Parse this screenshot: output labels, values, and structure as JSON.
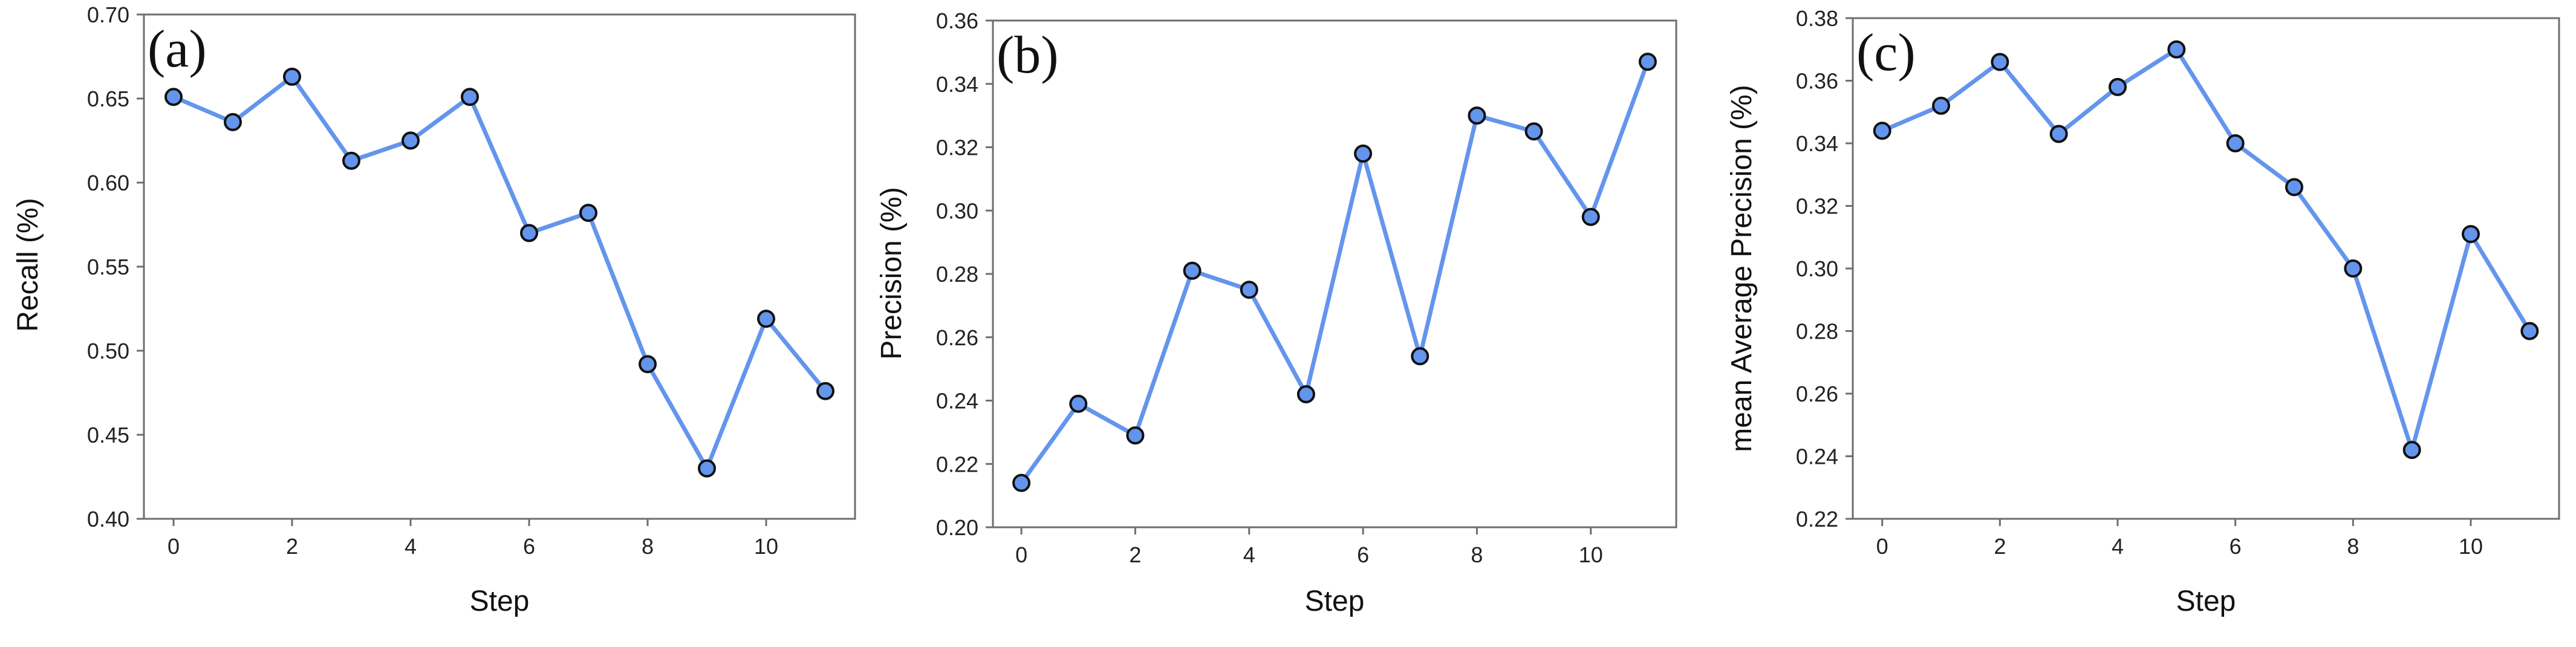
{
  "style": {
    "line_color": "#6495ED",
    "marker_fill": "#6495ED",
    "marker_edge": "#111111"
  },
  "chart_data": [
    {
      "type": "line",
      "panel_label": "(a)",
      "xlabel": "Step",
      "ylabel": "Recall (%)",
      "x": [
        0,
        1,
        2,
        3,
        4,
        5,
        6,
        7,
        8,
        9,
        10,
        11
      ],
      "values": [
        0.651,
        0.636,
        0.663,
        0.613,
        0.625,
        0.651,
        0.57,
        0.582,
        0.492,
        0.43,
        0.519,
        0.476
      ],
      "xlim": [
        -0.5,
        11.5
      ],
      "ylim": [
        0.4,
        0.7
      ],
      "xticks": [
        0,
        2,
        4,
        6,
        8,
        10
      ],
      "xtick_labels": [
        "0",
        "2",
        "4",
        "6",
        "8",
        "10"
      ],
      "yticks": [
        0.4,
        0.45,
        0.5,
        0.55,
        0.6,
        0.65,
        0.7
      ],
      "ytick_labels": [
        "0.40",
        "0.45",
        "0.50",
        "0.55",
        "0.60",
        "0.65",
        "0.70"
      ],
      "grid": false,
      "legend": false
    },
    {
      "type": "line",
      "panel_label": "(b)",
      "xlabel": "Step",
      "ylabel": "Precision (%)",
      "x": [
        0,
        1,
        2,
        3,
        4,
        5,
        6,
        7,
        8,
        9,
        10,
        11
      ],
      "values": [
        0.214,
        0.239,
        0.229,
        0.281,
        0.275,
        0.242,
        0.318,
        0.254,
        0.33,
        0.325,
        0.298,
        0.347
      ],
      "xlim": [
        -0.5,
        11.5
      ],
      "ylim": [
        0.2,
        0.36
      ],
      "xticks": [
        0,
        2,
        4,
        6,
        8,
        10
      ],
      "xtick_labels": [
        "0",
        "2",
        "4",
        "6",
        "8",
        "10"
      ],
      "yticks": [
        0.2,
        0.22,
        0.24,
        0.26,
        0.28,
        0.3,
        0.32,
        0.34,
        0.36
      ],
      "ytick_labels": [
        "0.20",
        "0.22",
        "0.24",
        "0.26",
        "0.28",
        "0.30",
        "0.32",
        "0.34",
        "0.36"
      ],
      "grid": false,
      "legend": false
    },
    {
      "type": "line",
      "panel_label": "(c)",
      "xlabel": "Step",
      "ylabel": "mean Average Precision (%)",
      "x": [
        0,
        1,
        2,
        3,
        4,
        5,
        6,
        7,
        8,
        9,
        10,
        11
      ],
      "values": [
        0.344,
        0.352,
        0.366,
        0.343,
        0.358,
        0.37,
        0.34,
        0.326,
        0.3,
        0.242,
        0.311,
        0.28
      ],
      "xlim": [
        -0.5,
        11.5
      ],
      "ylim": [
        0.22,
        0.38
      ],
      "xticks": [
        0,
        2,
        4,
        6,
        8,
        10
      ],
      "xtick_labels": [
        "0",
        "2",
        "4",
        "6",
        "8",
        "10"
      ],
      "yticks": [
        0.22,
        0.24,
        0.26,
        0.28,
        0.3,
        0.32,
        0.34,
        0.36,
        0.38
      ],
      "ytick_labels": [
        "0.22",
        "0.24",
        "0.26",
        "0.28",
        "0.30",
        "0.32",
        "0.34",
        "0.36",
        "0.38"
      ],
      "grid": false,
      "legend": false
    }
  ]
}
